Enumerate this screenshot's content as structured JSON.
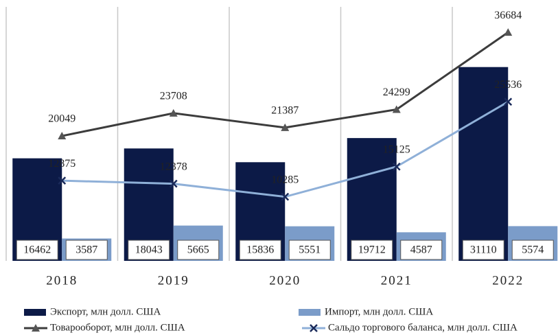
{
  "chart_data": {
    "type": "combo",
    "categories": [
      "2018",
      "2019",
      "2020",
      "2021",
      "2022"
    ],
    "series": [
      {
        "name": "Экспорт, млн долл. США",
        "type": "bar",
        "color": "#0c1a47",
        "values": [
          16462,
          18043,
          15836,
          19712,
          31110
        ]
      },
      {
        "name": "Импорт, млн долл. США",
        "type": "bar",
        "color": "#7b9cc9",
        "values": [
          3587,
          5665,
          5551,
          4587,
          5574
        ]
      },
      {
        "name": "Товарооборот, млн долл. США",
        "type": "line",
        "color": "#3c3c3c",
        "marker": "triangle",
        "values": [
          20049,
          23708,
          21387,
          24299,
          36684
        ]
      },
      {
        "name": "Сальдо торгового баланса, млн долл. США",
        "type": "line",
        "color": "#8fb0d8",
        "marker": "x",
        "values": [
          12875,
          12378,
          10285,
          15125,
          25536
        ]
      }
    ],
    "ylim": [
      0,
      40000
    ],
    "grid": true
  }
}
